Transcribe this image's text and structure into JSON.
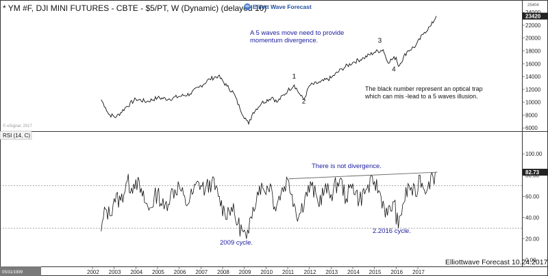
{
  "chart_data": [
    {
      "type": "line",
      "title": "* YM #F, DJI MINI FUTURES - CBTE - $5/PT, W (Dynamic) (delayed 10)",
      "brand": "Elliott Wave Forecast",
      "watermark": "© eSignal, 2017",
      "x_axis": {
        "ticks": [
          "2002",
          "2003",
          "2004",
          "2005",
          "2006",
          "2007",
          "2008",
          "2009",
          "2010",
          "2011",
          "2012",
          "2013",
          "2014",
          "2015",
          "2016",
          "2017"
        ],
        "range": [
          2001.0,
          2018.3
        ],
        "left_date": "05/31/1999"
      },
      "y_axis": {
        "ticks": [
          "6000",
          "8000",
          "10000",
          "12000",
          "14000",
          "16000",
          "18000",
          "20000",
          "22000",
          "24000"
        ],
        "range": [
          5600,
          25400
        ],
        "top_label": "25404",
        "last_value": "23420"
      },
      "series": [
        {
          "points": [
            [
              2002.4,
              10400
            ],
            [
              2002.6,
              9200
            ],
            [
              2002.75,
              8100
            ],
            [
              2003.1,
              7700
            ],
            [
              2003.5,
              9100
            ],
            [
              2004.0,
              10500
            ],
            [
              2004.5,
              10100
            ],
            [
              2005.0,
              10700
            ],
            [
              2005.5,
              10500
            ],
            [
              2006.0,
              10900
            ],
            [
              2006.5,
              11300
            ],
            [
              2006.9,
              12300
            ],
            [
              2007.4,
              13600
            ],
            [
              2007.8,
              14100
            ],
            [
              2008.2,
              12500
            ],
            [
              2008.5,
              11500
            ],
            [
              2008.8,
              9000
            ],
            [
              2009.1,
              7200
            ],
            [
              2009.2,
              6600
            ],
            [
              2009.4,
              8400
            ],
            [
              2009.8,
              9900
            ],
            [
              2010.3,
              10800
            ],
            [
              2010.5,
              10000
            ],
            [
              2011.0,
              11800
            ],
            [
              2011.3,
              12700
            ],
            [
              2011.6,
              11000
            ],
            [
              2011.75,
              10400
            ],
            [
              2012.0,
              12600
            ],
            [
              2012.5,
              13100
            ],
            [
              2013.0,
              13800
            ],
            [
              2013.5,
              15200
            ],
            [
              2014.0,
              16200
            ],
            [
              2014.5,
              16900
            ],
            [
              2015.0,
              17800
            ],
            [
              2015.4,
              18200
            ],
            [
              2015.6,
              16300
            ],
            [
              2016.0,
              17000
            ],
            [
              2016.1,
              15600
            ],
            [
              2016.5,
              17900
            ],
            [
              2016.9,
              18800
            ],
            [
              2017.3,
              20900
            ],
            [
              2017.6,
              21900
            ],
            [
              2017.85,
              23420
            ]
          ]
        }
      ],
      "wave_labels": [
        {
          "text": "1",
          "x": 2011.3,
          "y": 13700
        },
        {
          "text": "2",
          "x": 2011.75,
          "y": 9800
        },
        {
          "text": "3",
          "x": 2015.25,
          "y": 19300
        },
        {
          "text": "4",
          "x": 2015.9,
          "y": 14800
        }
      ],
      "annotations": {
        "blue_note_1": "A 5 waves move need to provide",
        "blue_note_2": "momentum divergence.",
        "black_note_1": "The black number represent an optical trap",
        "black_note_2": "which can mis -lead to a 5 waves illusion."
      },
      "grid": false,
      "legend": "none"
    },
    {
      "type": "line",
      "title": "RSI (14, C)",
      "y_axis": {
        "ticks": [
          "0.00",
          "20.00",
          "40.00",
          "60.00",
          "80.00",
          "100.00"
        ],
        "range": [
          -6,
          113
        ],
        "last_value": "82.73"
      },
      "reference_lines": [
        70,
        30
      ],
      "series": [
        {
          "points": [
            [
              2002.4,
              27
            ],
            [
              2002.6,
              48
            ],
            [
              2002.8,
              42
            ],
            [
              2003.0,
              58
            ],
            [
              2003.3,
              56
            ],
            [
              2003.6,
              74
            ],
            [
              2003.8,
              68
            ],
            [
              2004.0,
              76
            ],
            [
              2004.3,
              60
            ],
            [
              2004.6,
              47
            ],
            [
              2005.0,
              64
            ],
            [
              2005.3,
              48
            ],
            [
              2005.6,
              62
            ],
            [
              2006.0,
              70
            ],
            [
              2006.3,
              52
            ],
            [
              2006.6,
              62
            ],
            [
              2006.9,
              73
            ],
            [
              2007.2,
              66
            ],
            [
              2007.5,
              74
            ],
            [
              2007.8,
              60
            ],
            [
              2008.1,
              44
            ],
            [
              2008.4,
              50
            ],
            [
              2008.7,
              34
            ],
            [
              2008.9,
              28
            ],
            [
              2009.1,
              20
            ],
            [
              2009.2,
              25
            ],
            [
              2009.4,
              50
            ],
            [
              2009.7,
              70
            ],
            [
              2009.9,
              66
            ],
            [
              2010.2,
              72
            ],
            [
              2010.4,
              50
            ],
            [
              2010.7,
              64
            ],
            [
              2011.0,
              76
            ],
            [
              2011.2,
              62
            ],
            [
              2011.5,
              40
            ],
            [
              2011.8,
              60
            ],
            [
              2012.1,
              70
            ],
            [
              2012.4,
              54
            ],
            [
              2012.7,
              66
            ],
            [
              2013.0,
              62
            ],
            [
              2013.4,
              76
            ],
            [
              2013.7,
              58
            ],
            [
              2014.0,
              72
            ],
            [
              2014.3,
              56
            ],
            [
              2014.6,
              66
            ],
            [
              2015.0,
              74
            ],
            [
              2015.3,
              60
            ],
            [
              2015.6,
              42
            ],
            [
              2015.9,
              55
            ],
            [
              2016.1,
              30
            ],
            [
              2016.3,
              52
            ],
            [
              2016.6,
              70
            ],
            [
              2016.9,
              60
            ],
            [
              2017.1,
              80
            ],
            [
              2017.3,
              66
            ],
            [
              2017.5,
              74
            ],
            [
              2017.7,
              78
            ],
            [
              2017.85,
              82.73
            ]
          ]
        }
      ],
      "trendline": [
        [
          2011.05,
          76.5
        ],
        [
          2017.9,
          82.73
        ]
      ],
      "annotations": {
        "no_divergence": "There is not divergence.",
        "cycle_2009": "2009 cycle.",
        "cycle_2016": "2.2016 cycle."
      }
    }
  ],
  "footer": "Elliottwave Forecast 10.24.2017"
}
